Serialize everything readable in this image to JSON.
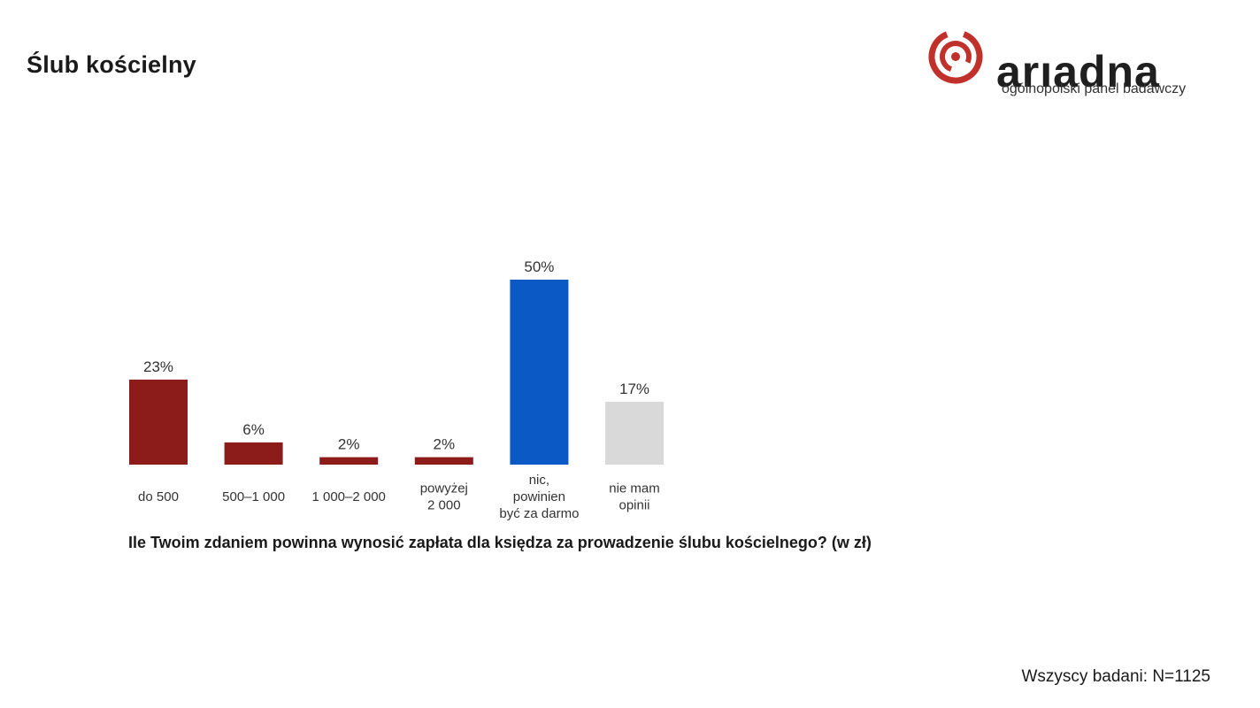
{
  "page": {
    "title": "Ślub kościelny"
  },
  "brand": {
    "name": "arıadna",
    "tagline": "ogólnopolski panel badawczy",
    "logo_icon": "ariadna-spiral-icon",
    "logo_color": "#c0312b"
  },
  "question": "Ile Twoim zdaniem powinna wynosić zapłata dla księdza za prowadzenie ślubu kościelnego? (w zł)",
  "footnote": "Wszyscy badani: N=1125",
  "chart_data": {
    "type": "bar",
    "title": "",
    "xlabel": "",
    "ylabel": "",
    "ylim": [
      0,
      50
    ],
    "grid": false,
    "categories": [
      [
        "do 500"
      ],
      [
        "500–1 000"
      ],
      [
        "1 000–2 000"
      ],
      [
        "powyżej",
        "2 000"
      ],
      [
        "nic,",
        "powinien",
        "być za darmo"
      ],
      [
        "nie mam",
        "opinii"
      ]
    ],
    "values": [
      23,
      6,
      2,
      2,
      50,
      17
    ],
    "value_labels": [
      "23%",
      "6%",
      "2%",
      "2%",
      "50%",
      "17%"
    ],
    "colors": [
      "#8b1c1a",
      "#8b1c1a",
      "#8b1c1a",
      "#8b1c1a",
      "#0a59c4",
      "#d9d9d9"
    ],
    "value_label_color": "#333333",
    "category_label_color": "#333333"
  }
}
